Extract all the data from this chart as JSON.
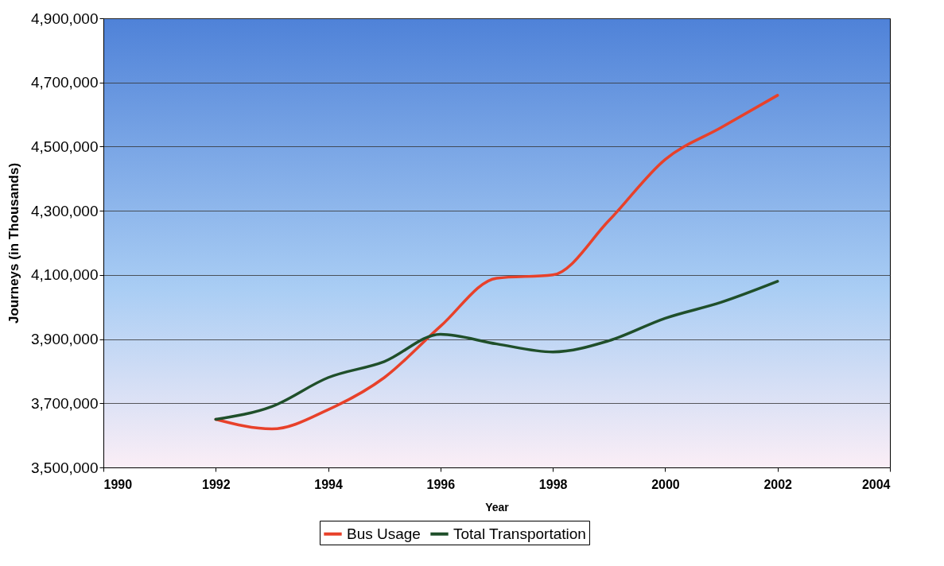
{
  "chart_data": {
    "type": "line",
    "xlabel": "Year",
    "ylabel": "Journeys (in Thousands)",
    "x": [
      1992,
      1993,
      1994,
      1995,
      1996,
      1997,
      1998,
      1999,
      2000,
      2001,
      2002
    ],
    "series": [
      {
        "name": "Bus Usage",
        "color": "#e8412a",
        "values": [
          3650000,
          3620000,
          3680000,
          3780000,
          3940000,
          4090000,
          4100000,
          4270000,
          4460000,
          4560000,
          4660000
        ]
      },
      {
        "name": "Total Transportation",
        "color": "#1f4f2a",
        "values": [
          3650000,
          3690000,
          3780000,
          3830000,
          3915000,
          3885000,
          3860000,
          3895000,
          3965000,
          4015000,
          4080000
        ]
      }
    ],
    "xlim": [
      1990,
      2004
    ],
    "xticks": [
      1990,
      1992,
      1994,
      1996,
      1998,
      2000,
      2002,
      2004
    ],
    "ylim": [
      3500000,
      4900000
    ],
    "yticks": [
      {
        "value": 3500000,
        "label": "3,500,000"
      },
      {
        "value": 3700000,
        "label": "3,700,000"
      },
      {
        "value": 3900000,
        "label": "3,900,000"
      },
      {
        "value": 4100000,
        "label": "4,100,000"
      },
      {
        "value": 4300000,
        "label": "4,300,000"
      },
      {
        "value": 4500000,
        "label": "4,500,000"
      },
      {
        "value": 4700000,
        "label": "4,700,000"
      },
      {
        "value": 4900000,
        "label": "4,900,000"
      }
    ],
    "grid": "y",
    "legend": "bottom",
    "marker": "none",
    "line_style": "solid"
  }
}
